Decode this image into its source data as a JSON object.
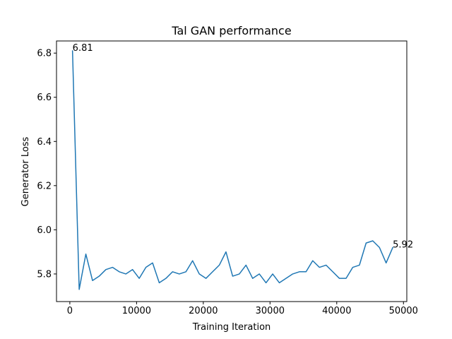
{
  "chart_data": {
    "type": "line",
    "title": "Tal GAN performance",
    "xlabel": "Training Iteration",
    "ylabel": "Generator Loss",
    "xlim": [
      -2000,
      50500
    ],
    "ylim": [
      5.675,
      6.855
    ],
    "xticks": [
      0,
      10000,
      20000,
      30000,
      40000,
      50000
    ],
    "xtick_labels": [
      "0",
      "10000",
      "20000",
      "30000",
      "40000",
      "50000"
    ],
    "yticks": [
      5.8,
      6.0,
      6.2,
      6.4,
      6.6,
      6.8
    ],
    "ytick_labels": [
      "5.8",
      "6.0",
      "6.2",
      "6.4",
      "6.6",
      "6.8"
    ],
    "grid": false,
    "series": [
      {
        "color": "#1f77b4",
        "x": [
          400,
          1400,
          2400,
          3400,
          4400,
          5400,
          6400,
          7400,
          8400,
          9400,
          10400,
          11400,
          12400,
          13400,
          14400,
          15400,
          16400,
          17400,
          18400,
          19400,
          20400,
          21400,
          22400,
          23400,
          24400,
          25400,
          26400,
          27400,
          28400,
          29400,
          30400,
          31400,
          32400,
          33400,
          34400,
          35400,
          36400,
          37400,
          38400,
          39400,
          40400,
          41400,
          42400,
          43400,
          44400,
          45400,
          46400,
          47400,
          48400
        ],
        "y": [
          6.81,
          5.73,
          5.89,
          5.77,
          5.79,
          5.82,
          5.83,
          5.81,
          5.8,
          5.82,
          5.78,
          5.83,
          5.85,
          5.76,
          5.78,
          5.81,
          5.8,
          5.81,
          5.86,
          5.8,
          5.78,
          5.81,
          5.84,
          5.9,
          5.79,
          5.8,
          5.84,
          5.78,
          5.8,
          5.76,
          5.8,
          5.76,
          5.78,
          5.8,
          5.81,
          5.81,
          5.86,
          5.83,
          5.84,
          5.81,
          5.78,
          5.78,
          5.83,
          5.84,
          5.94,
          5.95,
          5.92,
          5.85,
          5.92
        ]
      }
    ],
    "annotations": [
      {
        "text": "6.81",
        "x": 400,
        "y": 6.81
      },
      {
        "text": "5.92",
        "x": 48400,
        "y": 5.92
      }
    ]
  }
}
